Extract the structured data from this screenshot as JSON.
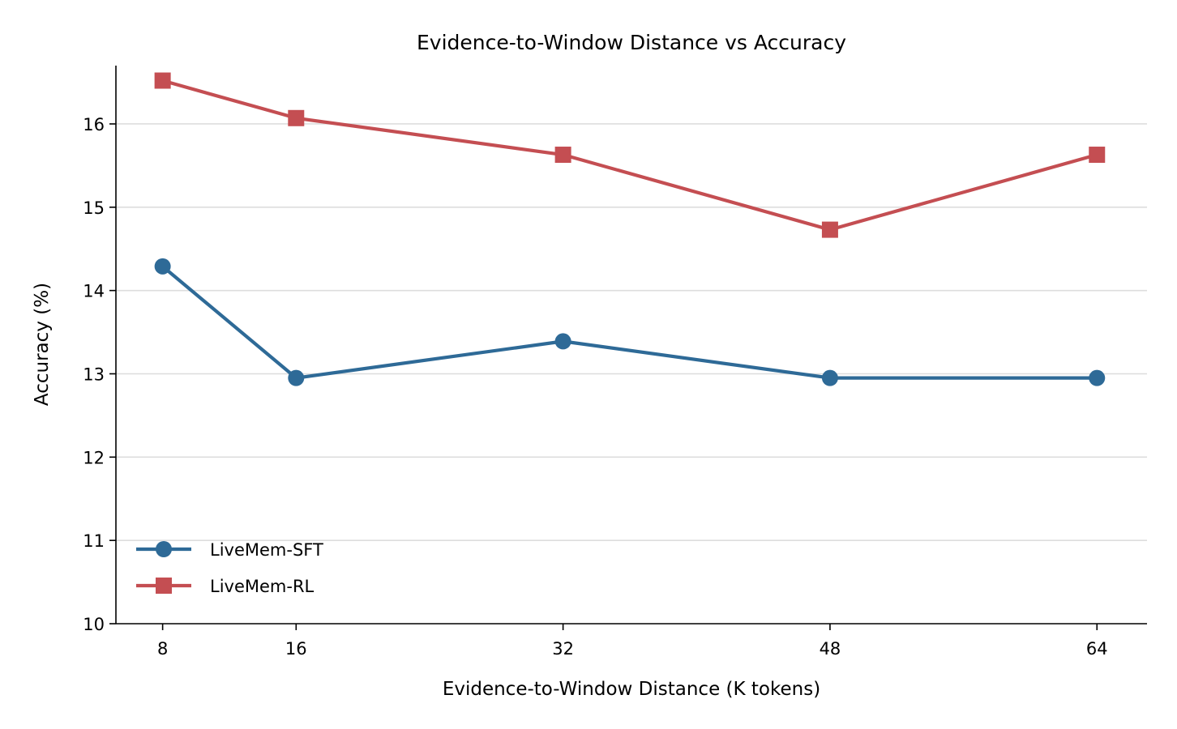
{
  "chart_data": {
    "type": "line",
    "title": "Evidence-to-Window Distance vs Accuracy",
    "xlabel": "Evidence-to-Window Distance (K tokens)",
    "ylabel": "Accuracy (%)",
    "x": [
      8,
      16,
      32,
      48,
      64
    ],
    "x_ticks": [
      "8",
      "16",
      "32",
      "48",
      "64"
    ],
    "xlim": [
      5.2,
      67.0
    ],
    "ylim": [
      10,
      16.7
    ],
    "y_ticks": [
      10,
      11,
      12,
      13,
      14,
      15,
      16
    ],
    "y_tick_labels": [
      "10",
      "11",
      "12",
      "13",
      "14",
      "15",
      "16"
    ],
    "grid": "horizontal",
    "legend_position": "lower-left",
    "series": [
      {
        "name": "LiveMem-SFT",
        "values": [
          14.29,
          12.95,
          13.39,
          12.95,
          12.95
        ],
        "color": "#2e6a97",
        "marker": "circle"
      },
      {
        "name": "LiveMem-RL",
        "values": [
          16.52,
          16.07,
          15.63,
          14.73,
          15.63
        ],
        "color": "#c44e52",
        "marker": "square"
      }
    ]
  }
}
